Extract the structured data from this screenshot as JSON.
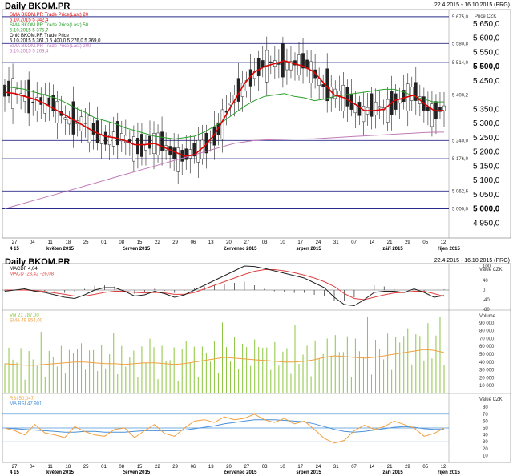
{
  "header": {
    "title": "Daily BKOM.PR",
    "date_range": "22.4.2015 - 16.10.2015 (PRG)"
  },
  "bottom_header": {
    "title": "Daily BKOM.PR",
    "date_range": "22.4.2015 - 16.10.2015 (PRG)"
  },
  "colors": {
    "sma20": "#e00000",
    "sma50": "#2aa02a",
    "sma200": "#c07ab8",
    "hline": "#2b2b8c",
    "macd": "#222222",
    "macd_signal": "#e04040",
    "volume": "#8cc63e",
    "vol_sma": "#f0a040",
    "rsi": "#f0a040",
    "rsi_ma": "#4a90d9"
  },
  "chart_data": [
    {
      "type": "candlestick",
      "title": "Daily BKOM.PR",
      "ylabel": "Price CZK",
      "ylim": [
        4900,
        5700
      ],
      "legend": [
        "SMA BKOM.PR Trade Price(Last) 20",
        "5.10.2015 5 342,4",
        "SMA BKOM.PR Trade Price(Last) 50",
        "5.10.2015 5 375,7",
        "Ohlč BKOM.PR Trade Price",
        "5.10.2015 5 361,0 5 400,0 5 276,0 5 369,0",
        "SMA BKOM.PR Trade Price(Last) 200",
        "5.10.2015 5 269,4"
      ],
      "y_ticks": [
        "4 950,0",
        "5 050,0",
        "5 100,0",
        "5 150,0",
        "5 200,0",
        "5 250,0",
        "5 300,0",
        "5 350,0",
        "5 450,0",
        "5 550,0",
        "5 600,0",
        "5 650,0"
      ],
      "y_ticks_bold": [
        "5 000,0",
        "5 500,0"
      ],
      "horizontal_lines": [
        {
          "value": 5675.0,
          "label": "5 675,0"
        },
        {
          "value": 5580.8,
          "label": "5 580,8"
        },
        {
          "value": 5514.0,
          "label": "5 514,0"
        },
        {
          "value": 5400.2,
          "label": "5 400,2"
        },
        {
          "value": 5240.0,
          "label": "5 240,0"
        },
        {
          "value": 5176.0,
          "label": "5 176,0"
        },
        {
          "value": 5062.6,
          "label": "5 062,6"
        },
        {
          "value": 5000.0,
          "label": "5 000,0"
        }
      ],
      "x_ticks": [
        "27",
        "04",
        "11",
        "18",
        "25",
        "01",
        "08",
        "15",
        "22",
        "29",
        "06",
        "13",
        "20",
        "27",
        "03",
        "10",
        "17",
        "24",
        "31",
        "07",
        "14",
        "21",
        "29",
        "05",
        "12"
      ],
      "months": [
        "4 15",
        "květen 2015",
        "červen 2015",
        "červenec 2015",
        "srpen 2015",
        "září 2015",
        "říjen 2015"
      ],
      "series_sma20": [
        5410,
        5405,
        5395,
        5385,
        5370,
        5350,
        5330,
        5310,
        5290,
        5270,
        5255,
        5250,
        5240,
        5225,
        5225,
        5230,
        5215,
        5200,
        5185,
        5190,
        5220,
        5260,
        5320,
        5380,
        5440,
        5480,
        5500,
        5510,
        5520,
        5510,
        5500,
        5480,
        5440,
        5400,
        5390,
        5370,
        5345,
        5345,
        5350,
        5380,
        5390,
        5400,
        5370,
        5345,
        5345
      ],
      "series_sma50": [
        5430,
        5425,
        5420,
        5410,
        5400,
        5390,
        5375,
        5355,
        5340,
        5320,
        5310,
        5300,
        5285,
        5275,
        5265,
        5255,
        5250,
        5245,
        5250,
        5255,
        5270,
        5290,
        5310,
        5335,
        5360,
        5380,
        5395,
        5400,
        5405,
        5395,
        5390,
        5380,
        5385,
        5395,
        5400,
        5405,
        5410,
        5415,
        5420,
        5420,
        5410,
        5395,
        5385,
        5375,
        5376
      ],
      "series_sma200": [
        5000,
        5010,
        5020,
        5030,
        5040,
        5050,
        5060,
        5070,
        5080,
        5090,
        5100,
        5110,
        5120,
        5130,
        5140,
        5150,
        5160,
        5170,
        5180,
        5190,
        5200,
        5210,
        5220,
        5230,
        5235,
        5240,
        5242,
        5243,
        5244,
        5245,
        5245,
        5246,
        5248,
        5250,
        5252,
        5254,
        5256,
        5258,
        5260,
        5262,
        5264,
        5266,
        5268,
        5269,
        5269.4
      ]
    },
    {
      "type": "line",
      "ylabel": "Value CZK",
      "ylim": [
        -80,
        110
      ],
      "legend": [
        "MACDF 4,04",
        "MACD -23,42 -26,08"
      ],
      "y_ticks": [
        "100",
        "40",
        "0",
        "-40",
        "-80"
      ],
      "series_macd": [
        -5,
        0,
        5,
        -5,
        -10,
        -20,
        -30,
        -35,
        -20,
        0,
        10,
        10,
        -5,
        -25,
        -20,
        -5,
        -15,
        -30,
        -20,
        0,
        20,
        40,
        60,
        80,
        100,
        98,
        90,
        80,
        70,
        60,
        50,
        30,
        10,
        -30,
        -60,
        -65,
        -40,
        -10,
        -5,
        -5,
        -10,
        5,
        -10,
        -30,
        -23
      ],
      "series_signal": [
        0,
        0,
        0,
        -2,
        -6,
        -12,
        -18,
        -25,
        -25,
        -18,
        -10,
        -5,
        -5,
        -10,
        -12,
        -10,
        -12,
        -18,
        -18,
        -10,
        5,
        20,
        35,
        50,
        65,
        78,
        85,
        85,
        80,
        72,
        62,
        50,
        35,
        15,
        -15,
        -35,
        -40,
        -30,
        -20,
        -12,
        -10,
        -5,
        -5,
        -15,
        -26
      ]
    },
    {
      "type": "bar",
      "ylabel": "Volume",
      "ylim": [
        0,
        100000
      ],
      "legend": [
        "Vol 21 787,00",
        "SMA 49 854,00"
      ],
      "y_ticks": [
        "90 000",
        "80 000",
        "70 000",
        "60 000",
        "50 000",
        "40 000",
        "30 000",
        "20 000",
        "10 000"
      ],
      "series_sma": [
        38000,
        37000,
        36000,
        36000,
        37000,
        38000,
        39000,
        40000,
        40000,
        39000,
        38000,
        38000,
        37000,
        38000,
        39000,
        39000,
        38000,
        37000,
        38000,
        40000,
        42000,
        44000,
        46000,
        45000,
        44000,
        43000,
        42000,
        41000,
        40000,
        40000,
        41000,
        43000,
        46000,
        48000,
        47000,
        46000,
        45000,
        46000,
        48000,
        50000,
        52000,
        54000,
        56000,
        55000,
        52000
      ]
    },
    {
      "type": "line",
      "ylabel": "Value CZK",
      "ylim": [
        0,
        100
      ],
      "legend": [
        "RSI 50,047",
        "MA RSI 47,901"
      ],
      "y_ticks": [
        "80",
        "70",
        "60",
        "50",
        "40",
        "30",
        "20",
        "10"
      ],
      "horizontal_lines": [
        70,
        50,
        30
      ],
      "series_rsi": [
        50,
        46,
        40,
        55,
        43,
        40,
        36,
        52,
        45,
        40,
        38,
        48,
        50,
        36,
        46,
        55,
        42,
        38,
        50,
        60,
        62,
        58,
        66,
        62,
        64,
        70,
        62,
        58,
        64,
        56,
        60,
        48,
        35,
        28,
        32,
        46,
        54,
        48,
        52,
        60,
        55,
        50,
        38,
        42,
        50
      ],
      "series_ma": [
        50,
        49,
        48,
        47,
        46,
        45,
        44,
        44,
        45,
        45,
        44,
        44,
        44,
        45,
        46,
        46,
        46,
        46,
        47,
        49,
        51,
        53,
        56,
        58,
        60,
        62,
        62,
        62,
        61,
        60,
        59,
        56,
        52,
        48,
        45,
        44,
        45,
        47,
        49,
        51,
        52,
        51,
        49,
        48,
        48
      ]
    }
  ]
}
